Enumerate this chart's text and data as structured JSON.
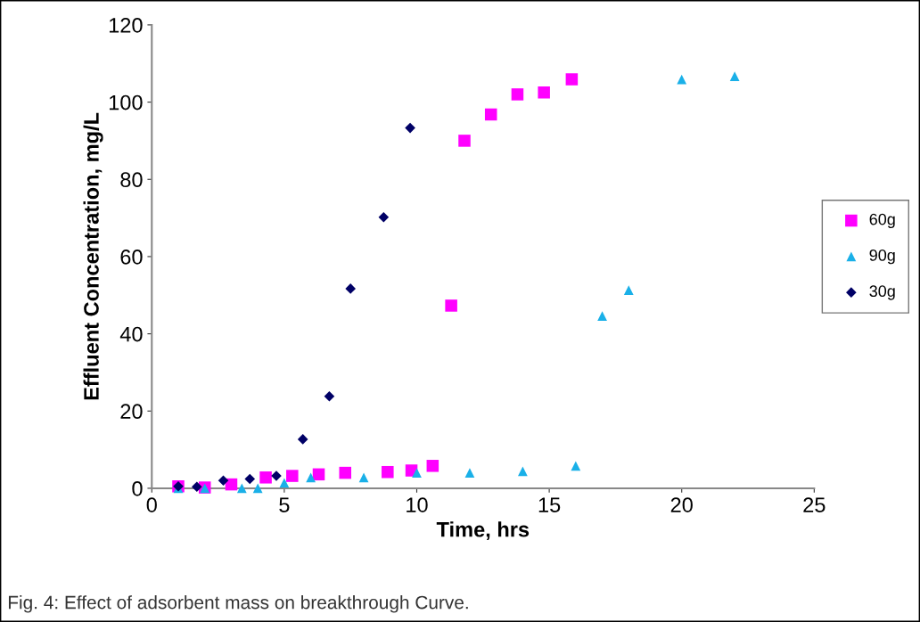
{
  "chart_data": {
    "type": "scatter",
    "xlabel": "Time, hrs",
    "ylabel": "Effluent Concentration, mg/L",
    "xlim": [
      0,
      25
    ],
    "xticks": [
      0,
      5,
      10,
      15,
      20,
      25
    ],
    "ylim": [
      0,
      120
    ],
    "yticks": [
      0,
      20,
      40,
      60,
      80,
      100,
      120
    ],
    "grid": false,
    "legend": "right",
    "annotations": [
      "Fig. 4: Effect of adsorbent mass on breakthrough Curve."
    ],
    "series": [
      {
        "name": "60g",
        "color": "#ff00ff",
        "marker": "square",
        "x": [
          1.0,
          2.0,
          3.0,
          4.3,
          5.3,
          6.3,
          7.3,
          8.9,
          9.8,
          10.6,
          11.3,
          11.8,
          12.8,
          13.8,
          14.8,
          15.85
        ],
        "values": [
          0.5,
          0.2,
          1,
          2.8,
          3.2,
          3.6,
          4.0,
          4.2,
          4.6,
          5.8,
          47.3,
          90,
          96.8,
          102,
          102.5,
          105.9
        ]
      },
      {
        "name": "90g",
        "color": "#1ab0e8",
        "marker": "triangle",
        "x": [
          1.0,
          2.0,
          3.4,
          4.0,
          5.0,
          6.0,
          8.0,
          10.0,
          12.0,
          14.0,
          16.0,
          17.0,
          18.0,
          20.0,
          22.0
        ],
        "values": [
          0,
          0,
          0,
          0,
          1.4,
          2.8,
          2.8,
          4,
          4,
          4.4,
          5.8,
          44.6,
          51.3,
          105.9,
          106.7
        ]
      },
      {
        "name": "30g",
        "color": "#000066",
        "marker": "diamond",
        "x": [
          1.0,
          1.7,
          2.7,
          3.7,
          4.7,
          5.7,
          6.7,
          7.5,
          8.75,
          9.75
        ],
        "values": [
          0.5,
          0.4,
          2,
          2.4,
          3.2,
          12.7,
          23.8,
          51.7,
          70.2,
          93.3
        ]
      }
    ]
  }
}
